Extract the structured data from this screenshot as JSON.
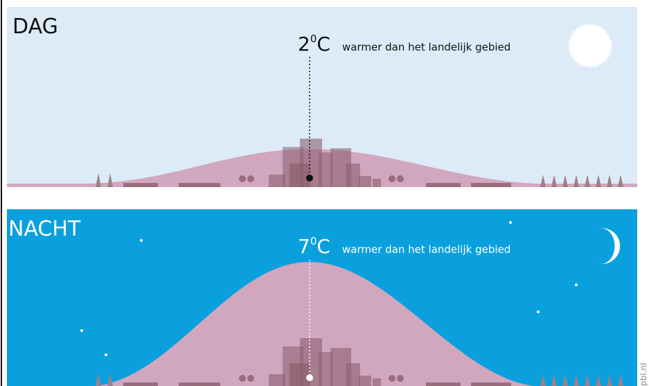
{
  "panels": [
    {
      "label": "DAG",
      "temperature": {
        "value": 2,
        "degree": "0",
        "unit": "C"
      },
      "description": "warmer dan het landelijk gebied"
    },
    {
      "label": "NACHT",
      "temperature": {
        "value": 7,
        "degree": "0",
        "unit": "C"
      },
      "description": "warmer dan het landelijk gebied"
    }
  ],
  "credit": "pbl.nl"
}
